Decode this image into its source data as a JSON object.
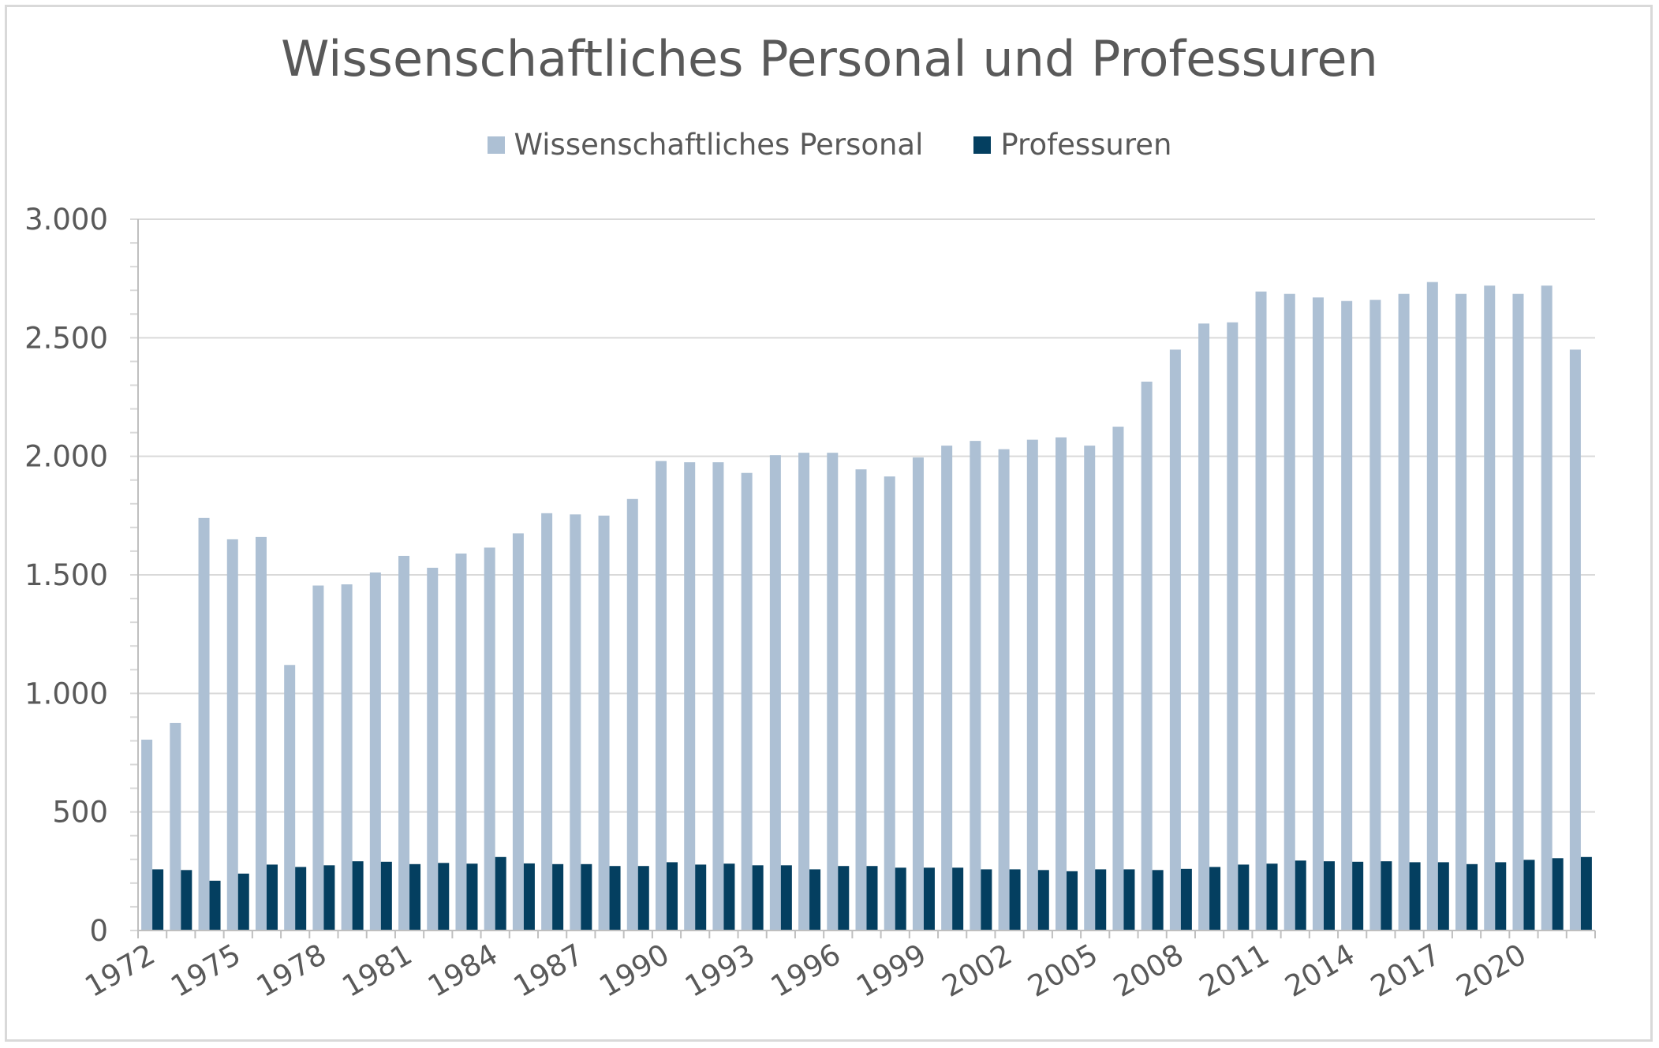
{
  "chart_data": {
    "type": "bar",
    "title": "Wissenschaftliches Personal und Professuren",
    "xlabel": "",
    "ylabel": "",
    "ylim": [
      0,
      3000
    ],
    "yticks": [
      0,
      500,
      1000,
      1500,
      2000,
      2500,
      3000
    ],
    "ytick_labels": [
      "0",
      "500",
      "1.000",
      "1.500",
      "2.000",
      "2.500",
      "3.000"
    ],
    "legend_position": "top-center",
    "categories": [
      1972,
      1973,
      1974,
      1975,
      1976,
      1977,
      1978,
      1979,
      1980,
      1981,
      1982,
      1983,
      1984,
      1985,
      1986,
      1987,
      1988,
      1989,
      1990,
      1991,
      1992,
      1993,
      1994,
      1995,
      1996,
      1997,
      1998,
      1999,
      2000,
      2001,
      2002,
      2003,
      2004,
      2005,
      2006,
      2007,
      2008,
      2009,
      2010,
      2011,
      2012,
      2013,
      2014,
      2015,
      2016,
      2017,
      2018,
      2019,
      2020,
      2021,
      2022
    ],
    "xtick_labels": [
      "1972",
      "1975",
      "1978",
      "1981",
      "1984",
      "1987",
      "1990",
      "1993",
      "1996",
      "1999",
      "2002",
      "2005",
      "2008",
      "2011",
      "2014",
      "2017",
      "2020"
    ],
    "series": [
      {
        "name": "Wissenschaftliches Personal",
        "color": "#adc0d4",
        "values": [
          805,
          875,
          1740,
          1650,
          1660,
          1120,
          1455,
          1460,
          1510,
          1580,
          1530,
          1590,
          1615,
          1675,
          1760,
          1755,
          1750,
          1820,
          1980,
          1975,
          1975,
          1930,
          2005,
          2015,
          2015,
          1945,
          1915,
          1995,
          2045,
          2065,
          2030,
          2070,
          2080,
          2045,
          2125,
          2315,
          2450,
          2560,
          2565,
          2695,
          2685,
          2670,
          2655,
          2660,
          2685,
          2735,
          2685,
          2720,
          2685,
          2720,
          2450
        ]
      },
      {
        "name": "Professuren",
        "color": "#043f60",
        "values": [
          258,
          255,
          210,
          240,
          278,
          268,
          275,
          292,
          290,
          280,
          285,
          282,
          310,
          283,
          280,
          280,
          272,
          272,
          288,
          278,
          282,
          275,
          275,
          258,
          272,
          272,
          265,
          265,
          265,
          258,
          258,
          255,
          250,
          258,
          258,
          255,
          260,
          268,
          278,
          282,
          295,
          292,
          290,
          292,
          288,
          288,
          280,
          288,
          298,
          305,
          310
        ]
      }
    ]
  }
}
